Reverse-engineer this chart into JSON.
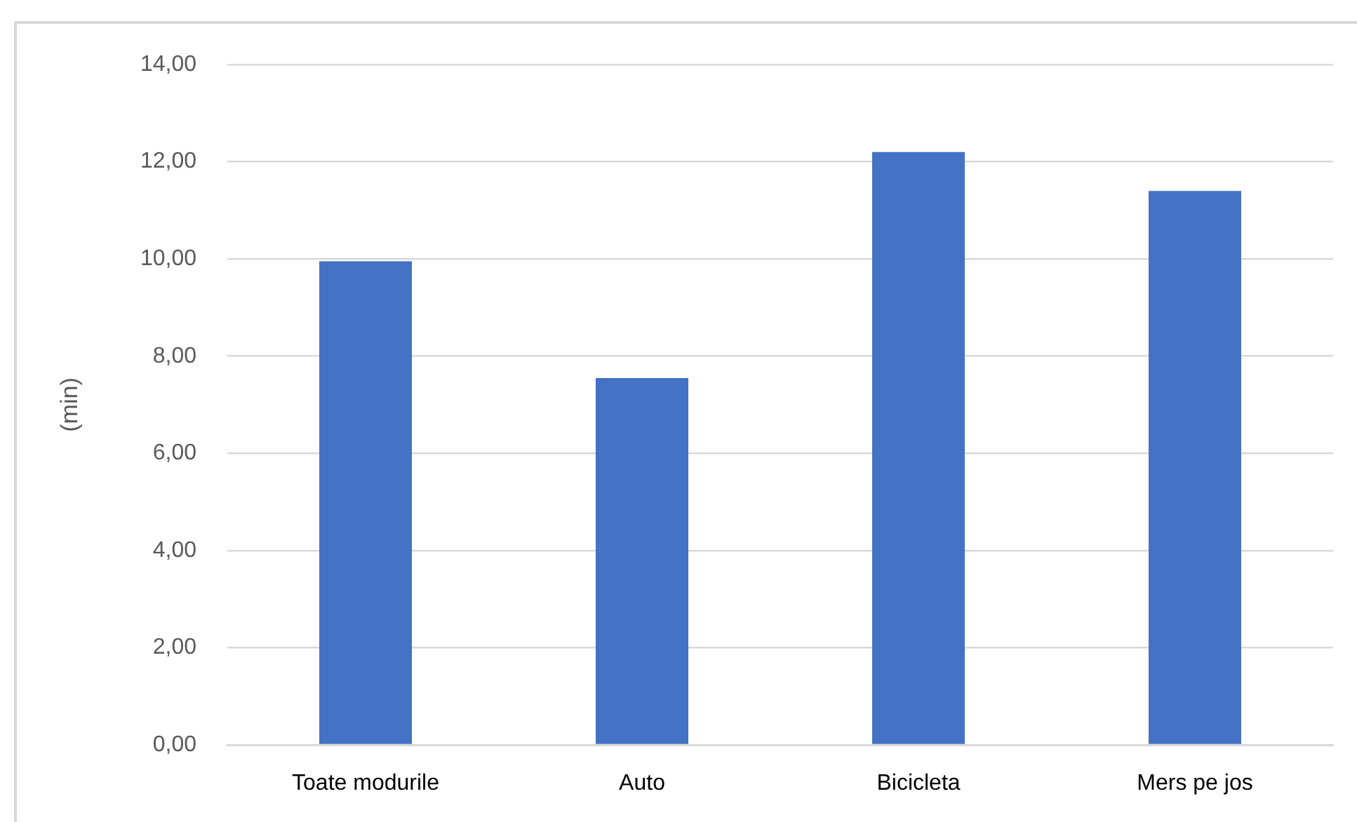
{
  "chart_data": {
    "type": "bar",
    "ylabel": "(min)",
    "categories": [
      "Toate modurile",
      "Auto",
      "Bicicleta",
      "Mers pe jos"
    ],
    "values": [
      9.95,
      7.55,
      12.2,
      11.4
    ],
    "color": "#4472c4",
    "ylim": [
      0,
      14
    ],
    "yticks": [
      {
        "value": 0,
        "label": "0,00"
      },
      {
        "value": 2,
        "label": "2,00"
      },
      {
        "value": 4,
        "label": "4,00"
      },
      {
        "value": 6,
        "label": "6,00"
      },
      {
        "value": 8,
        "label": "8,00"
      },
      {
        "value": 10,
        "label": "10,00"
      },
      {
        "value": 12,
        "label": "12,00"
      },
      {
        "value": 14,
        "label": "14,00"
      }
    ],
    "grid": "y",
    "legend": false
  }
}
